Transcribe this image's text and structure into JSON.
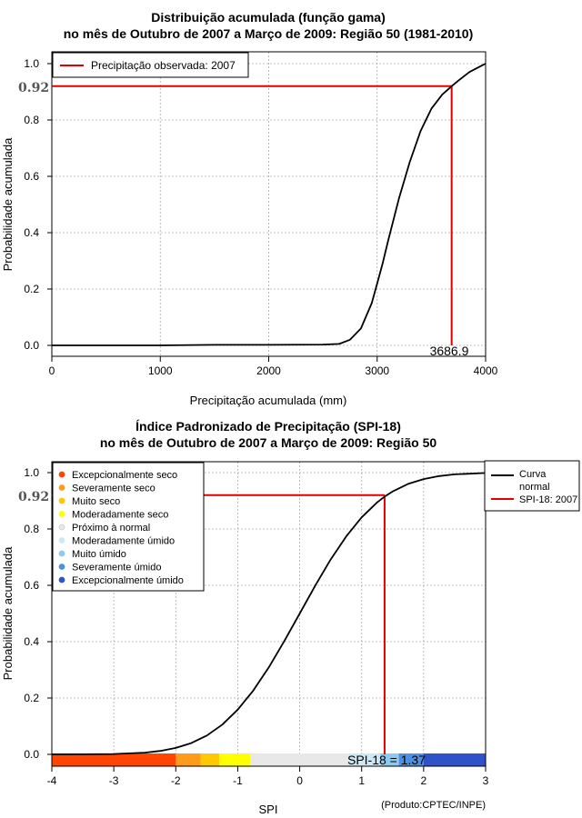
{
  "chart_data": [
    {
      "type": "line",
      "title": "Distribuição acumulada (função gama)",
      "subtitle": "no mês de Outubro de 2007 a Março de 2009: Região 50 (1981-2010)",
      "xlabel": "Precipitação acumulada (mm)",
      "ylabel": "Probabilidade acumulada",
      "xlim": [
        0,
        4000
      ],
      "ylim": [
        0,
        1
      ],
      "x_ticks": [
        "0",
        "1000",
        "2000",
        "3000",
        "4000"
      ],
      "y_ticks": [
        "0.0",
        "0.2",
        "0.4",
        "0.6",
        "0.8",
        "1.0"
      ],
      "grid": true,
      "legend": {
        "position": "top-left",
        "entries": [
          {
            "label": "Precipitação observada: 2007",
            "color": "#e00000"
          }
        ]
      },
      "series": [
        {
          "color": "#000000",
          "x": [
            0,
            1000,
            1500,
            2000,
            2500,
            2650,
            2750,
            2850,
            2950,
            3000,
            3050,
            3100,
            3200,
            3300,
            3400,
            3500,
            3600,
            3686.9,
            3750,
            3850,
            3950,
            4000
          ],
          "y": [
            0,
            0,
            0.002,
            0.002,
            0.003,
            0.005,
            0.02,
            0.06,
            0.15,
            0.22,
            0.29,
            0.37,
            0.52,
            0.65,
            0.76,
            0.84,
            0.89,
            0.92,
            0.94,
            0.97,
            0.99,
            1.0
          ]
        }
      ],
      "observed": {
        "x": 3686.9,
        "y": 0.92,
        "x_label": "3686.9",
        "y_label": "0.92",
        "color": "#e00000"
      }
    },
    {
      "type": "line",
      "title": "Índice Padronizado de Precipitação (SPI-18)",
      "subtitle": "no mês de Outubro de 2007 a Março de 2009: Região 50",
      "xlabel": "SPI",
      "ylabel": "Probabilidade acumulada",
      "xlim": [
        -4,
        3
      ],
      "ylim": [
        0,
        1
      ],
      "x_ticks": [
        "-4",
        "-3",
        "-2",
        "-1",
        "0",
        "1",
        "2",
        "3"
      ],
      "y_ticks": [
        "0.0",
        "0.2",
        "0.4",
        "0.6",
        "0.8",
        "1.0"
      ],
      "grid": true,
      "legend": {
        "position": "outside-top-right",
        "entries": [
          {
            "label": "Curva normal",
            "color": "#000000"
          },
          {
            "label": "SPI-18: 2007",
            "color": "#e00000"
          }
        ]
      },
      "category_legend": [
        {
          "label": "Excepcionalmente seco",
          "color": "#ff4500"
        },
        {
          "label": "Severamente seco",
          "color": "#ff9a1a"
        },
        {
          "label": "Muito seco",
          "color": "#ffc800"
        },
        {
          "label": "Moderadamente seco",
          "color": "#ffff00"
        },
        {
          "label": "Próximo à normal",
          "color": "#e8e8e8"
        },
        {
          "label": "Moderadamente úmido",
          "color": "#cde7f5"
        },
        {
          "label": "Muito úmido",
          "color": "#8ec9f0"
        },
        {
          "label": "Severamente úmido",
          "color": "#4d8fe0"
        },
        {
          "label": "Excepcionalmente úmido",
          "color": "#2f52c8"
        }
      ],
      "color_bar": [
        {
          "from": -4,
          "to": -2,
          "color": "#ff4500"
        },
        {
          "from": -2,
          "to": -1.6,
          "color": "#ff9a1a"
        },
        {
          "from": -1.6,
          "to": -1.3,
          "color": "#ffc800"
        },
        {
          "from": -1.3,
          "to": -0.8,
          "color": "#ffff00"
        },
        {
          "from": -0.8,
          "to": 0.8,
          "color": "#e8e8e8"
        },
        {
          "from": 0.8,
          "to": 1.3,
          "color": "#cde7f5"
        },
        {
          "from": 1.3,
          "to": 1.6,
          "color": "#8ec9f0"
        },
        {
          "from": 1.6,
          "to": 2.0,
          "color": "#4d8fe0"
        },
        {
          "from": 2.0,
          "to": 3,
          "color": "#2f52c8"
        }
      ],
      "series": [
        {
          "name": "Curva normal",
          "color": "#000000",
          "x": [
            -4,
            -3.5,
            -3,
            -2.5,
            -2.25,
            -2,
            -1.75,
            -1.5,
            -1.25,
            -1,
            -0.75,
            -0.5,
            -0.25,
            0,
            0.25,
            0.5,
            0.75,
            1,
            1.25,
            1.37,
            1.5,
            1.75,
            2,
            2.25,
            2.5,
            3
          ],
          "y": [
            0.0,
            0.0002,
            0.0013,
            0.0062,
            0.0122,
            0.0228,
            0.0401,
            0.0668,
            0.1056,
            0.1587,
            0.2266,
            0.3085,
            0.4013,
            0.5,
            0.5987,
            0.6915,
            0.7734,
            0.8413,
            0.8944,
            0.9147,
            0.9332,
            0.9599,
            0.9772,
            0.9878,
            0.9938,
            0.9987
          ]
        }
      ],
      "observed": {
        "x": 1.37,
        "y": 0.92,
        "y_label": "0.92",
        "annotation": "SPI-18 = 1.37",
        "color": "#e00000"
      },
      "credit": "(Produto:CPTEC/INPE)"
    }
  ]
}
